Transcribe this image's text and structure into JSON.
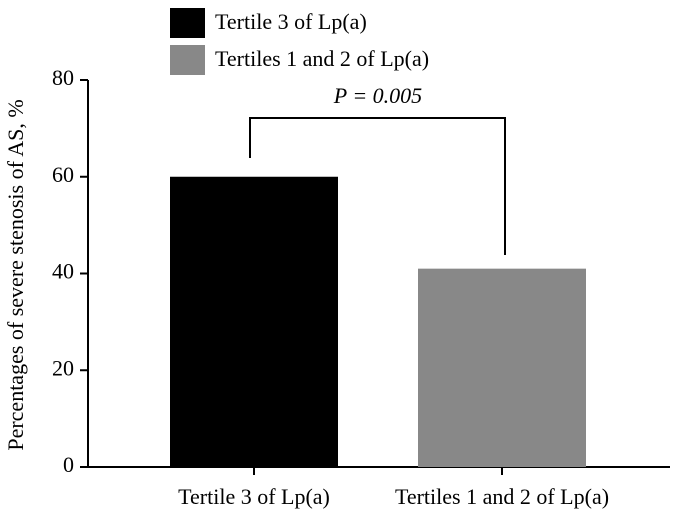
{
  "chart_data": {
    "type": "bar",
    "ylabel": "Percentages of severe stenosis of AS, %",
    "annotation": "P = 0.005",
    "categories": [
      "Tertile 3 of Lp(a)",
      "Tertiles 1 and 2 of Lp(a)"
    ],
    "series": [
      {
        "name": "Tertile 3 of Lp(a)",
        "color": "#000000",
        "values": [
          60,
          null
        ]
      },
      {
        "name": "Tertiles 1 and 2 of Lp(a)",
        "color": "#888888",
        "values": [
          null,
          41
        ]
      }
    ],
    "ylim": [
      0,
      80
    ],
    "yticks": [
      0,
      20,
      40,
      60,
      80
    ],
    "grid": false,
    "legend": "top"
  }
}
